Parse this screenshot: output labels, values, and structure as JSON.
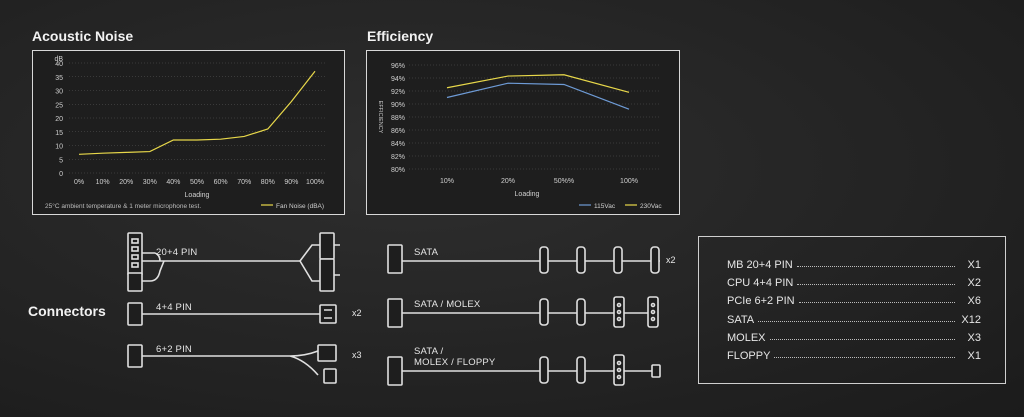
{
  "acoustic": {
    "heading": "Acoustic Noise",
    "footnote": "25°C ambient temperature & 1 meter microphone test.",
    "chart_data": {
      "type": "line",
      "title": "Acoustic Noise",
      "xlabel": "Loading",
      "ylabel": "dB",
      "categories": [
        "0%",
        "10%",
        "20%",
        "30%",
        "40%",
        "50%",
        "60%",
        "70%",
        "80%",
        "90%",
        "100%"
      ],
      "ylim": [
        0,
        40
      ],
      "yticks": [
        0,
        5,
        10,
        15,
        20,
        25,
        30,
        35,
        40
      ],
      "grid": true,
      "legend_position": "bottom-right",
      "series": [
        {
          "name": "Fan Noise (dBA)",
          "color": "#e8d84a",
          "values": [
            6.8,
            7.2,
            7.5,
            7.8,
            12.0,
            12.0,
            12.3,
            13.3,
            16.0,
            26.0,
            37.0
          ]
        }
      ]
    }
  },
  "efficiency": {
    "heading": "Efficiency",
    "chart_data": {
      "type": "line",
      "title": "Efficiency",
      "xlabel": "Loading",
      "ylabel": "EFFICIENCY",
      "categories": [
        "10%",
        "20%",
        "50%%",
        "100%"
      ],
      "x": [
        10,
        20,
        50,
        100
      ],
      "ylim": [
        80,
        96
      ],
      "yticks": [
        "80%",
        "82%",
        "84%",
        "86%",
        "88%",
        "90%",
        "92%",
        "94%",
        "96%"
      ],
      "ytick_values": [
        80,
        82,
        84,
        86,
        88,
        90,
        92,
        94,
        96
      ],
      "grid": true,
      "legend_position": "bottom-right",
      "series": [
        {
          "name": "115Vac",
          "color": "#6e9bd6",
          "values": [
            91.0,
            93.2,
            93.0,
            89.2
          ]
        },
        {
          "name": "230Vac",
          "color": "#e8d84a",
          "values": [
            92.5,
            94.3,
            94.5,
            91.8
          ]
        }
      ]
    }
  },
  "connectors": {
    "heading": "Connectors",
    "cables": [
      {
        "label": "20+4 PIN"
      },
      {
        "label": "4+4 PIN",
        "multiplier": "x2"
      },
      {
        "label": "6+2 PIN",
        "multiplier": "x3"
      },
      {
        "label": "SATA",
        "multiplier": "x2"
      },
      {
        "label": "SATA / MOLEX"
      },
      {
        "label_line1": "SATA /",
        "label_line2": "MOLEX / FLOPPY"
      }
    ]
  },
  "specs": [
    {
      "name": "MB 20+4 PIN",
      "count": "X1"
    },
    {
      "name": "CPU 4+4 PIN",
      "count": "X2"
    },
    {
      "name": "PCIe 6+2 PIN",
      "count": "X6"
    },
    {
      "name": "SATA",
      "count": "X12"
    },
    {
      "name": "MOLEX",
      "count": "X3"
    },
    {
      "name": "FLOPPY",
      "count": "X1"
    }
  ]
}
